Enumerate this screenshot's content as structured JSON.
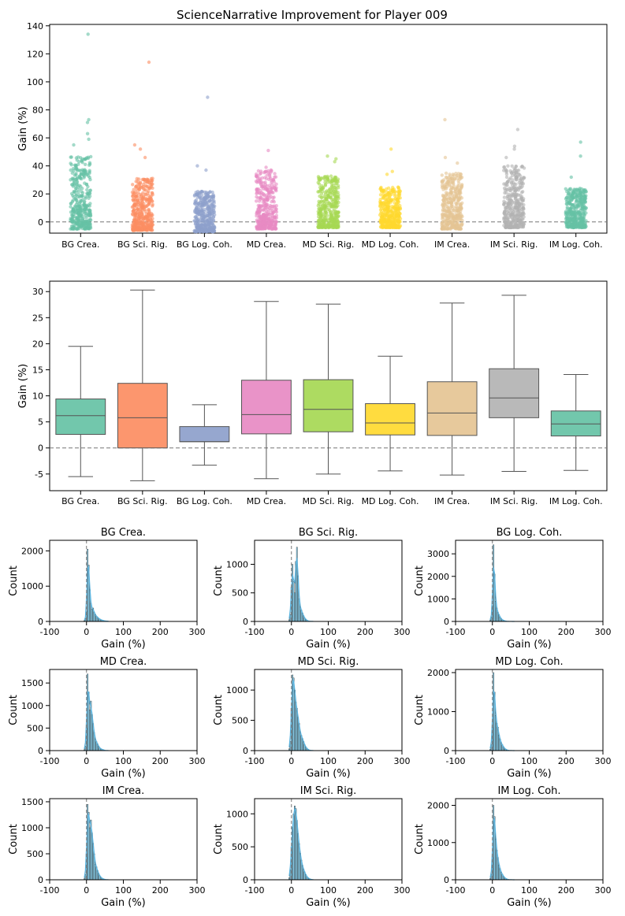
{
  "title": "ScienceNarrative Improvement for Player 009",
  "colors": [
    "#66c2a5",
    "#fc8d62",
    "#8da0cb",
    "#e78ac3",
    "#a6d854",
    "#ffd92f",
    "#e5c494",
    "#b3b3b3",
    "#66c2a5"
  ],
  "chart_data": [
    {
      "type": "scatter",
      "subtype": "strip",
      "categories": [
        "BG Crea.",
        "BG Sci. Rig.",
        "BG Log. Coh.",
        "MD Crea.",
        "MD Sci. Rig.",
        "MD Log. Coh.",
        "IM Crea.",
        "IM Sci. Rig.",
        "IM Log. Coh."
      ],
      "ylabel": "Gain (%)",
      "ylim": [
        -8,
        141
      ],
      "yticks": [
        0,
        20,
        40,
        60,
        80,
        100,
        120,
        140
      ],
      "reference_line": 0,
      "spread": [
        [
          -5,
          47
        ],
        [
          -6,
          31
        ],
        [
          -7,
          22
        ],
        [
          -5,
          37
        ],
        [
          -4,
          33
        ],
        [
          -4,
          25
        ],
        [
          -5,
          35
        ],
        [
          -4,
          40
        ],
        [
          -4,
          24
        ]
      ],
      "outliers": [
        [
          134,
          73,
          71,
          63,
          59,
          55
        ],
        [
          114,
          55,
          52,
          46
        ],
        [
          89,
          40,
          37
        ],
        [
          51,
          39
        ],
        [
          47,
          45,
          43
        ],
        [
          52,
          36,
          34
        ],
        [
          73,
          46,
          42
        ],
        [
          66,
          54,
          52,
          46
        ],
        [
          57,
          47,
          32
        ]
      ]
    },
    {
      "type": "box",
      "categories": [
        "BG Crea.",
        "BG Sci. Rig.",
        "BG Log. Coh.",
        "MD Crea.",
        "MD Sci. Rig.",
        "MD Log. Coh.",
        "IM Crea.",
        "IM Sci. Rig.",
        "IM Log. Coh."
      ],
      "ylabel": "Gain (%)",
      "ylim": [
        -8.2,
        32
      ],
      "yticks": [
        -5,
        0,
        5,
        10,
        15,
        20,
        25,
        30
      ],
      "reference_line": 0,
      "boxes": [
        {
          "whislo": -5.5,
          "q1": 2.6,
          "med": 6.2,
          "q3": 9.4,
          "whishi": 19.5
        },
        {
          "whislo": -6.3,
          "q1": 0.0,
          "med": 5.8,
          "q3": 12.4,
          "whishi": 30.3
        },
        {
          "whislo": -3.3,
          "q1": 1.2,
          "med": 1.2,
          "q3": 4.1,
          "whishi": 8.3
        },
        {
          "whislo": -5.9,
          "q1": 2.7,
          "med": 6.4,
          "q3": 13.0,
          "whishi": 28.1
        },
        {
          "whislo": -5.0,
          "q1": 3.1,
          "med": 7.4,
          "q3": 13.1,
          "whishi": 27.6
        },
        {
          "whislo": -4.4,
          "q1": 2.5,
          "med": 4.8,
          "q3": 8.5,
          "whishi": 17.6
        },
        {
          "whislo": -5.2,
          "q1": 2.4,
          "med": 6.7,
          "q3": 12.7,
          "whishi": 27.8
        },
        {
          "whislo": -4.5,
          "q1": 5.8,
          "med": 9.6,
          "q3": 15.2,
          "whishi": 29.3
        },
        {
          "whislo": -4.3,
          "q1": 2.3,
          "med": 4.6,
          "q3": 7.1,
          "whishi": 14.1
        }
      ]
    },
    {
      "type": "histogram",
      "xlabel": "Gain (%)",
      "ylabel": "Count",
      "xlim": [
        -100,
        300
      ],
      "xticks": [
        -100,
        0,
        100,
        200,
        300
      ],
      "bin_centers": [
        -6,
        -3,
        0,
        3,
        6,
        9,
        12,
        15,
        18,
        21,
        24,
        27,
        30,
        33,
        36,
        39,
        42,
        45,
        48,
        51,
        54,
        57,
        60
      ],
      "reference_line": 0,
      "panels": [
        {
          "title": "BG Crea.",
          "ylim": [
            0,
            2300
          ],
          "yticks": [
            0,
            1000,
            2000
          ],
          "counts": [
            20,
            80,
            300,
            2050,
            1600,
            900,
            500,
            350,
            380,
            250,
            200,
            150,
            120,
            90,
            70,
            50,
            40,
            30,
            20,
            15,
            10,
            8,
            5
          ]
        },
        {
          "title": "BG Sci. Rig.",
          "ylim": [
            0,
            1420
          ],
          "yticks": [
            0,
            500,
            1000
          ],
          "counts": [
            30,
            120,
            600,
            1000,
            700,
            500,
            1050,
            1300,
            800,
            400,
            250,
            200,
            150,
            100,
            60,
            40,
            20,
            10,
            5,
            3,
            2,
            1,
            1
          ]
        },
        {
          "title": "BG Log. Coh.",
          "ylim": [
            0,
            3600
          ],
          "yticks": [
            0,
            1000,
            2000,
            3000
          ],
          "counts": [
            50,
            200,
            700,
            3400,
            2100,
            900,
            600,
            400,
            300,
            200,
            120,
            80,
            50,
            30,
            20,
            10,
            5,
            3,
            2,
            1,
            1,
            0,
            0
          ]
        },
        {
          "title": "MD Crea.",
          "ylim": [
            0,
            1800
          ],
          "yticks": [
            0,
            500,
            1000,
            1500
          ],
          "counts": [
            20,
            100,
            500,
            1700,
            1300,
            900,
            1100,
            800,
            600,
            400,
            250,
            200,
            150,
            100,
            60,
            40,
            30,
            20,
            10,
            5,
            3,
            2,
            1
          ]
        },
        {
          "title": "MD Sci. Rig.",
          "ylim": [
            0,
            1340
          ],
          "yticks": [
            0,
            500,
            1000
          ],
          "counts": [
            30,
            150,
            700,
            1250,
            1200,
            1000,
            800,
            700,
            550,
            450,
            300,
            250,
            200,
            150,
            100,
            60,
            40,
            20,
            10,
            5,
            3,
            2,
            1
          ]
        },
        {
          "title": "MD Log. Coh.",
          "ylim": [
            0,
            2080
          ],
          "yticks": [
            0,
            1000,
            2000
          ],
          "counts": [
            30,
            150,
            600,
            2000,
            1500,
            900,
            700,
            600,
            400,
            300,
            200,
            150,
            100,
            60,
            40,
            20,
            10,
            5,
            3,
            2,
            1,
            0,
            0
          ]
        },
        {
          "title": "IM Crea.",
          "ylim": [
            0,
            1560
          ],
          "yticks": [
            0,
            500,
            1000,
            1500
          ],
          "counts": [
            20,
            100,
            500,
            1450,
            1300,
            1000,
            1150,
            900,
            700,
            500,
            300,
            250,
            180,
            120,
            80,
            50,
            30,
            20,
            10,
            5,
            3,
            2,
            1
          ]
        },
        {
          "title": "IM Sci. Rig.",
          "ylim": [
            0,
            1230
          ],
          "yticks": [
            0,
            500,
            1000
          ],
          "counts": [
            30,
            150,
            500,
            800,
            1000,
            1120,
            1080,
            900,
            700,
            550,
            400,
            300,
            220,
            160,
            120,
            80,
            50,
            30,
            20,
            10,
            5,
            3,
            1
          ]
        },
        {
          "title": "IM Log. Coh.",
          "ylim": [
            0,
            2180
          ],
          "yticks": [
            0,
            1000,
            2000
          ],
          "counts": [
            30,
            150,
            600,
            2000,
            1700,
            1100,
            800,
            600,
            400,
            300,
            200,
            150,
            100,
            60,
            40,
            20,
            10,
            5,
            3,
            2,
            1,
            0,
            0
          ]
        }
      ]
    }
  ]
}
